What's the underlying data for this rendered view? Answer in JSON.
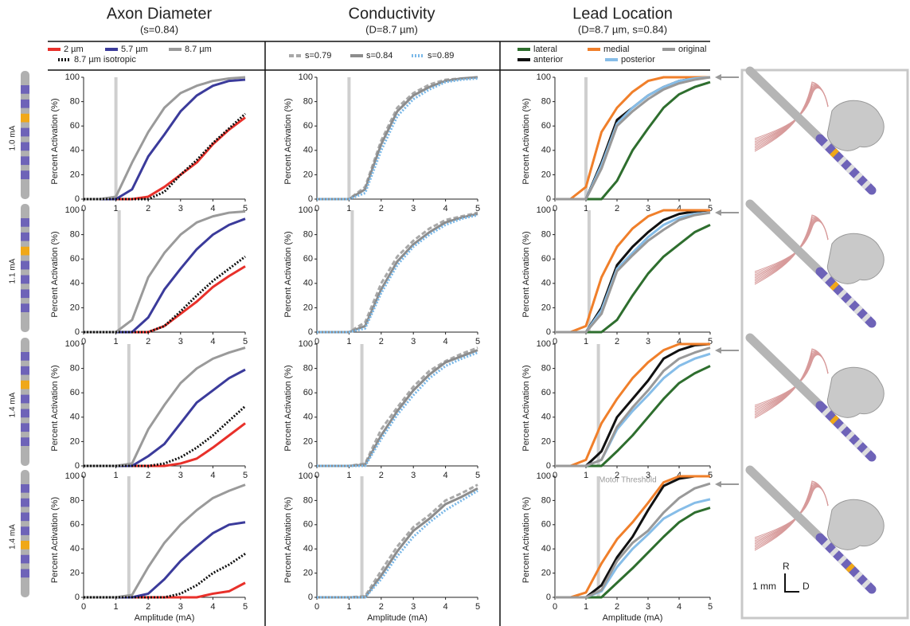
{
  "rows": [
    "1.0 mA",
    "1.1 mA",
    "1.4 mA",
    "1.4 mA"
  ],
  "annotations": {
    "motor_threshold": "Motor Threshold",
    "scale_bar": "1 mm",
    "axis_r": "R",
    "axis_d": "D"
  },
  "chart_data": [
    {
      "type": "line",
      "title": "Axon Diameter",
      "subtitle": "(s=0.84)",
      "xlabel": "Amplitude (mA)",
      "ylabel": "Percent Activation (%)",
      "x": [
        0,
        0.5,
        1,
        1.5,
        2,
        2.5,
        3,
        3.5,
        4,
        4.5,
        5
      ],
      "xlim": [
        0,
        5
      ],
      "ylim": [
        0,
        100
      ],
      "xticks": [
        0,
        1,
        2,
        3,
        4,
        5
      ],
      "yticks": [
        0,
        20,
        40,
        60,
        80,
        100
      ],
      "series": [
        {
          "name": "2 µm",
          "color": "#e8302a",
          "style": "solid"
        },
        {
          "name": "5.7 µm",
          "color": "#3b3b9b",
          "style": "solid"
        },
        {
          "name": "8.7 µm",
          "color": "#9a9a9a",
          "style": "solid"
        },
        {
          "name": "8.7 µm isotropic",
          "color": "#111111",
          "style": "dotted"
        }
      ],
      "panels": [
        {
          "threshold": 1.0,
          "values": [
            [
              0,
              0,
              0,
              0,
              2,
              10,
              20,
              30,
              45,
              57,
              67
            ],
            [
              0,
              0,
              0,
              8,
              35,
              53,
              72,
              85,
              93,
              97,
              98
            ],
            [
              0,
              0,
              2,
              30,
              55,
              75,
              87,
              93,
              97,
              99,
              100
            ],
            [
              0,
              0,
              0,
              0,
              0,
              6,
              20,
              32,
              46,
              58,
              70
            ]
          ]
        },
        {
          "threshold": 1.1,
          "values": [
            [
              0,
              0,
              0,
              0,
              0,
              5,
              15,
              25,
              37,
              46,
              54
            ],
            [
              0,
              0,
              0,
              0,
              12,
              35,
              52,
              68,
              80,
              88,
              93
            ],
            [
              0,
              0,
              0,
              10,
              45,
              65,
              80,
              90,
              95,
              98,
              99
            ],
            [
              0,
              0,
              0,
              0,
              0,
              5,
              17,
              30,
              42,
              52,
              62
            ]
          ]
        },
        {
          "threshold": 1.4,
          "values": [
            [
              0,
              0,
              0,
              0,
              0,
              0,
              2,
              6,
              15,
              25,
              35
            ],
            [
              0,
              0,
              0,
              0,
              8,
              18,
              35,
              52,
              62,
              72,
              79
            ],
            [
              0,
              0,
              0,
              2,
              30,
              50,
              68,
              80,
              88,
              93,
              97
            ],
            [
              0,
              0,
              0,
              0,
              0,
              2,
              7,
              15,
              25,
              37,
              49
            ]
          ]
        },
        {
          "threshold": 1.4,
          "values": [
            [
              0,
              0,
              0,
              0,
              0,
              0,
              0,
              0,
              3,
              5,
              12
            ],
            [
              0,
              0,
              0,
              0,
              3,
              15,
              30,
              42,
              53,
              60,
              62
            ],
            [
              0,
              0,
              0,
              2,
              25,
              45,
              60,
              72,
              82,
              88,
              93
            ],
            [
              0,
              0,
              0,
              0,
              0,
              0,
              3,
              10,
              20,
              27,
              36
            ]
          ]
        }
      ]
    },
    {
      "type": "line",
      "title": "Conductivity",
      "subtitle": "(D=8.7 µm)",
      "xlabel": "Amplitude (mA)",
      "ylabel": "Percent Activation (%)",
      "x": [
        0,
        0.5,
        1,
        1.5,
        2,
        2.5,
        3,
        3.5,
        4,
        4.5,
        5
      ],
      "xlim": [
        0,
        5
      ],
      "ylim": [
        0,
        100
      ],
      "xticks": [
        0,
        1,
        2,
        3,
        4,
        5
      ],
      "yticks": [
        0,
        20,
        40,
        60,
        80,
        100
      ],
      "series": [
        {
          "name": "s=0.79",
          "color": "#a8a8a8",
          "style": "dashed"
        },
        {
          "name": "s=0.84",
          "color": "#8c8c8c",
          "style": "solid"
        },
        {
          "name": "s=0.89",
          "color": "#7ab8e8",
          "style": "dotted"
        }
      ],
      "panels": [
        {
          "threshold": 1.0,
          "values": [
            [
              0,
              0,
              0,
              10,
              48,
              75,
              87,
              94,
              98,
              99,
              100
            ],
            [
              0,
              0,
              0,
              8,
              45,
              72,
              85,
              92,
              97,
              99,
              100
            ],
            [
              0,
              0,
              0,
              5,
              40,
              68,
              82,
              90,
              96,
              98,
              99
            ]
          ]
        },
        {
          "threshold": 1.1,
          "values": [
            [
              0,
              0,
              0,
              8,
              40,
              62,
              75,
              85,
              92,
              95,
              98
            ],
            [
              0,
              0,
              0,
              5,
              35,
              58,
              72,
              82,
              90,
              94,
              97
            ],
            [
              0,
              0,
              0,
              3,
              32,
              55,
              70,
              80,
              88,
              93,
              96
            ]
          ]
        },
        {
          "threshold": 1.4,
          "values": [
            [
              0,
              0,
              0,
              2,
              30,
              48,
              65,
              78,
              86,
              92,
              97
            ],
            [
              0,
              0,
              0,
              1,
              25,
              45,
              62,
              75,
              85,
              90,
              95
            ],
            [
              0,
              0,
              0,
              0,
              22,
              42,
              58,
              72,
              82,
              88,
              93
            ]
          ]
        },
        {
          "threshold": 1.4,
          "values": [
            [
              0,
              0,
              0,
              1,
              22,
              42,
              58,
              68,
              80,
              86,
              93
            ],
            [
              0,
              0,
              0,
              0,
              18,
              38,
              55,
              65,
              77,
              83,
              90
            ],
            [
              0,
              0,
              0,
              0,
              15,
              34,
              50,
              62,
              72,
              80,
              88
            ]
          ]
        }
      ]
    },
    {
      "type": "line",
      "title": "Lead Location",
      "subtitle": "(D=8.7 µm, s=0.84)",
      "xlabel": "Amplitude (mA)",
      "ylabel": "Percent Activation (%)",
      "x": [
        0,
        0.5,
        1,
        1.5,
        2,
        2.5,
        3,
        3.5,
        4,
        4.5,
        5
      ],
      "xlim": [
        0,
        5
      ],
      "ylim": [
        0,
        100
      ],
      "xticks": [
        0,
        1,
        2,
        3,
        4,
        5
      ],
      "yticks": [
        0,
        20,
        40,
        60,
        80,
        100
      ],
      "series": [
        {
          "name": "lateral",
          "color": "#2e6e2e",
          "style": "solid"
        },
        {
          "name": "anterior",
          "color": "#111111",
          "style": "solid"
        },
        {
          "name": "medial",
          "color": "#f07f2a",
          "style": "solid"
        },
        {
          "name": "posterior",
          "color": "#86bde8",
          "style": "solid"
        },
        {
          "name": "original",
          "color": "#999999",
          "style": "solid"
        }
      ],
      "panels": [
        {
          "threshold": 1.0,
          "values": [
            [
              0,
              0,
              0,
              0,
              15,
              40,
              58,
              75,
              86,
              92,
              96
            ],
            [
              0,
              0,
              0,
              30,
              65,
              75,
              85,
              92,
              97,
              99,
              100
            ],
            [
              0,
              0,
              10,
              55,
              75,
              88,
              97,
              100,
              100,
              100,
              100
            ],
            [
              0,
              0,
              0,
              28,
              62,
              75,
              85,
              92,
              97,
              99,
              100
            ],
            [
              0,
              0,
              0,
              25,
              60,
              72,
              82,
              90,
              95,
              98,
              100
            ]
          ]
        },
        {
          "threshold": 1.1,
          "values": [
            [
              0,
              0,
              0,
              0,
              10,
              30,
              48,
              62,
              72,
              82,
              88
            ],
            [
              0,
              0,
              0,
              20,
              55,
              70,
              82,
              92,
              97,
              99,
              100
            ],
            [
              0,
              0,
              5,
              45,
              70,
              85,
              95,
              100,
              100,
              100,
              100
            ],
            [
              0,
              0,
              0,
              18,
              52,
              65,
              78,
              88,
              94,
              97,
              98
            ],
            [
              0,
              0,
              0,
              15,
              50,
              63,
              75,
              84,
              92,
              96,
              98
            ]
          ]
        },
        {
          "threshold": 1.4,
          "values": [
            [
              0,
              0,
              0,
              0,
              12,
              25,
              40,
              55,
              68,
              76,
              82
            ],
            [
              0,
              0,
              0,
              12,
              40,
              55,
              70,
              88,
              95,
              99,
              100
            ],
            [
              0,
              0,
              5,
              35,
              55,
              72,
              85,
              95,
              100,
              100,
              100
            ],
            [
              0,
              0,
              0,
              5,
              30,
              45,
              58,
              72,
              82,
              88,
              92
            ],
            [
              0,
              0,
              0,
              5,
              32,
              48,
              62,
              78,
              88,
              93,
              97
            ]
          ]
        },
        {
          "threshold": 1.4,
          "values": [
            [
              0,
              0,
              0,
              0,
              12,
              24,
              37,
              50,
              62,
              70,
              74
            ],
            [
              0,
              0,
              0,
              10,
              33,
              50,
              72,
              92,
              98,
              100,
              100
            ],
            [
              0,
              0,
              4,
              28,
              48,
              62,
              78,
              95,
              100,
              100,
              100
            ],
            [
              0,
              0,
              0,
              5,
              25,
              40,
              52,
              65,
              72,
              78,
              81
            ],
            [
              0,
              0,
              0,
              6,
              30,
              45,
              55,
              70,
              82,
              90,
              94
            ]
          ]
        }
      ]
    }
  ]
}
